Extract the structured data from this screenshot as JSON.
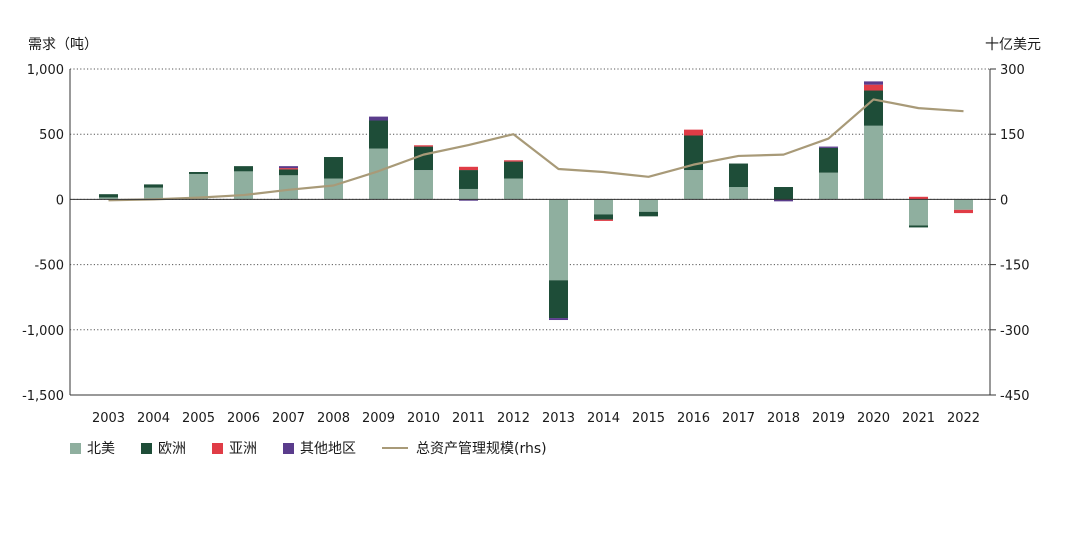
{
  "y_left_unit": "需求（吨）",
  "y_right_unit": "十亿美元",
  "colors": {
    "north_america": "#8faf9f",
    "europe": "#1e4d38",
    "asia": "#e03c46",
    "other": "#5a3c8c",
    "aum_line": "#a89a78"
  },
  "chart_data": {
    "type": "bar",
    "stacked": true,
    "categories": [
      "2003",
      "2004",
      "2005",
      "2006",
      "2007",
      "2008",
      "2009",
      "2010",
      "2011",
      "2012",
      "2013",
      "2014",
      "2015",
      "2016",
      "2017",
      "2018",
      "2019",
      "2020",
      "2021",
      "2022"
    ],
    "series": [
      {
        "name": "北美",
        "values": [
          15,
          90,
          195,
          215,
          185,
          160,
          390,
          225,
          80,
          160,
          -620,
          -115,
          -95,
          225,
          95,
          0,
          205,
          565,
          -200,
          -80
        ]
      },
      {
        "name": "欧洲",
        "values": [
          25,
          25,
          15,
          40,
          45,
          165,
          215,
          180,
          145,
          130,
          -290,
          -40,
          -35,
          265,
          180,
          95,
          190,
          270,
          -15,
          0
        ]
      },
      {
        "name": "亚洲",
        "values": [
          0,
          0,
          0,
          0,
          10,
          0,
          0,
          10,
          25,
          10,
          0,
          -10,
          0,
          45,
          0,
          0,
          0,
          45,
          20,
          -25
        ]
      },
      {
        "name": "其他地区",
        "values": [
          0,
          0,
          0,
          0,
          15,
          0,
          30,
          0,
          -10,
          0,
          -15,
          0,
          0,
          0,
          0,
          -15,
          10,
          25,
          0,
          0
        ]
      }
    ],
    "line": {
      "name": "总资产管理规模(rhs)",
      "values": [
        -2,
        0,
        4,
        10,
        22,
        32,
        65,
        103,
        125,
        150,
        70,
        63,
        52,
        80,
        100,
        103,
        140,
        230,
        210,
        203
      ]
    },
    "ylim_left": [
      -1500,
      1000
    ],
    "yticks_left": [
      "1,000",
      "500",
      "0",
      "-500",
      "-1,000",
      "-1,500"
    ],
    "ylim_right": [
      -450,
      300
    ],
    "yticks_right": [
      "300",
      "150",
      "0",
      "-150",
      "-300",
      "-450"
    ],
    "grid": true,
    "legend_position": "bottom-left"
  }
}
